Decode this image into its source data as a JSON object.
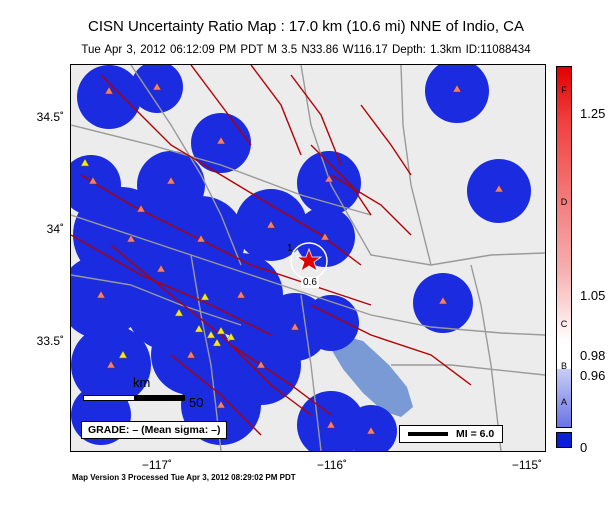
{
  "header": {
    "title": "CISN Uncertainty Ratio Map : 17.0 km (10.6 mi) NNE of Indio, CA",
    "subtitle": "Tue Apr  3, 2012 06:12:09 PM PDT   M 3.5   N33.86 W116.17   Depth: 1.3km   ID:11088434"
  },
  "axes": {
    "lat_labels": [
      "34.5˚",
      "34˚",
      "33.5˚"
    ],
    "lon_labels": [
      "−117˚",
      "−116˚",
      "−115˚"
    ]
  },
  "map": {
    "scale_bar_label": "km",
    "scale_bar_value": "50",
    "grade_text": "GRADE: – (Mean sigma: –)",
    "mi_text": "MI = 6.0",
    "contour_labels": [
      "1",
      "0.6"
    ],
    "colors": {
      "uncertainty_blue": "#1a2be0",
      "background": "#ececec",
      "water": "#7a9ad6",
      "fault": "#b30000",
      "roads": "#999999",
      "station_salmon": "#f08070",
      "station_yellow": "#f2ea1a"
    }
  },
  "colorbar": {
    "letters": [
      "F",
      "D",
      "C",
      "B",
      "A"
    ],
    "values": [
      "1.25",
      "1.05",
      "0.98",
      "0.96",
      "0"
    ]
  },
  "footer": {
    "text": "Map Version 3 Processed Tue Apr  3, 2012 08:29:02 PM PDT"
  }
}
